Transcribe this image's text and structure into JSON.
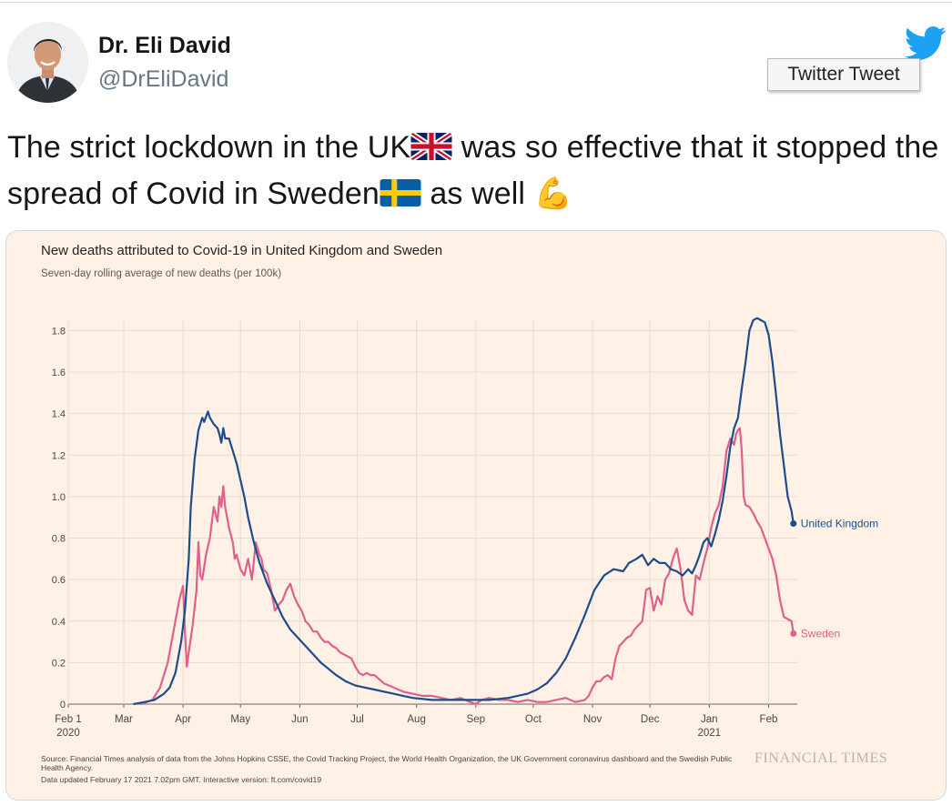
{
  "tweet": {
    "author_name": "Dr. Eli David",
    "author_handle": "@DrEliDavid",
    "tooltip": "Twitter Tweet",
    "text_part1": "The strict lockdown in the UK",
    "text_part2": " was so effective that it stopped the spread of Covid in Sweden",
    "text_part3": " as well ",
    "emoji_flag_uk": "uk-flag-icon",
    "emoji_flag_se": "sweden-flag-icon",
    "emoji_muscle": "💪"
  },
  "colors": {
    "uk": "#1b4d8c",
    "sweden": "#e05f8b",
    "background": "#fff1e5",
    "grid": "#e8dcd2",
    "twitter_blue": "#1da1f2"
  },
  "chart_data": {
    "type": "line",
    "title": "New deaths attributed to Covid-19 in United Kingdom and Sweden",
    "subtitle": "Seven-day rolling average of new deaths (per 100k)",
    "xlabel": "",
    "ylabel": "",
    "ylim": [
      0,
      1.85
    ],
    "yticks": [
      0,
      0.2,
      0.4,
      0.6,
      0.8,
      1.0,
      1.2,
      1.4,
      1.6,
      1.8
    ],
    "ytick_labels": [
      "0",
      "0.2",
      "0.4",
      "0.6",
      "0.8",
      "1.0",
      "1.2",
      "1.4",
      "1.6",
      "1.8"
    ],
    "xlim": [
      0,
      381
    ],
    "xticks": [
      {
        "day": 0,
        "label": "Feb 1",
        "sublabel": "2020"
      },
      {
        "day": 29,
        "label": "Mar",
        "sublabel": ""
      },
      {
        "day": 60,
        "label": "Apr",
        "sublabel": ""
      },
      {
        "day": 90,
        "label": "May",
        "sublabel": ""
      },
      {
        "day": 121,
        "label": "Jun",
        "sublabel": ""
      },
      {
        "day": 151,
        "label": "Jul",
        "sublabel": ""
      },
      {
        "day": 182,
        "label": "Aug",
        "sublabel": ""
      },
      {
        "day": 213,
        "label": "Sep",
        "sublabel": ""
      },
      {
        "day": 243,
        "label": "Oct",
        "sublabel": ""
      },
      {
        "day": 274,
        "label": "Nov",
        "sublabel": ""
      },
      {
        "day": 304,
        "label": "Dec",
        "sublabel": ""
      },
      {
        "day": 335,
        "label": "Jan",
        "sublabel": "2021"
      },
      {
        "day": 366,
        "label": "Feb",
        "sublabel": ""
      }
    ],
    "series": [
      {
        "name": "United Kingdom",
        "color": "#1b4d8c",
        "x": [
          34,
          40,
          45,
          50,
          53,
          56,
          59,
          61,
          63,
          64,
          66,
          68,
          70,
          71,
          73,
          74,
          76,
          78,
          79,
          80,
          81,
          82,
          84,
          86,
          88,
          90,
          92,
          94,
          97,
          100,
          104,
          108,
          112,
          116,
          120,
          124,
          128,
          132,
          136,
          140,
          145,
          150,
          155,
          160,
          165,
          170,
          175,
          180,
          190,
          200,
          210,
          220,
          230,
          240,
          245,
          250,
          255,
          260,
          265,
          270,
          275,
          280,
          285,
          290,
          293,
          297,
          300,
          303,
          306,
          309,
          312,
          315,
          318,
          321,
          324,
          326,
          328,
          330,
          332,
          334,
          336,
          338,
          340,
          342,
          344,
          346,
          348,
          350,
          352,
          354,
          356,
          358,
          360,
          362,
          364,
          366,
          368,
          370,
          372,
          374,
          376,
          378,
          379
        ],
        "y": [
          0.0,
          0.01,
          0.02,
          0.05,
          0.08,
          0.15,
          0.3,
          0.45,
          0.7,
          0.95,
          1.18,
          1.32,
          1.38,
          1.36,
          1.41,
          1.38,
          1.35,
          1.33,
          1.3,
          1.26,
          1.33,
          1.28,
          1.28,
          1.22,
          1.16,
          1.08,
          1.0,
          0.9,
          0.78,
          0.68,
          0.58,
          0.5,
          0.42,
          0.36,
          0.32,
          0.28,
          0.24,
          0.2,
          0.17,
          0.14,
          0.11,
          0.09,
          0.08,
          0.07,
          0.06,
          0.05,
          0.04,
          0.03,
          0.02,
          0.02,
          0.02,
          0.02,
          0.03,
          0.05,
          0.07,
          0.1,
          0.15,
          0.22,
          0.32,
          0.43,
          0.55,
          0.62,
          0.65,
          0.64,
          0.68,
          0.7,
          0.72,
          0.67,
          0.7,
          0.68,
          0.68,
          0.65,
          0.64,
          0.62,
          0.65,
          0.63,
          0.67,
          0.72,
          0.78,
          0.8,
          0.76,
          0.82,
          0.89,
          0.98,
          1.1,
          1.24,
          1.33,
          1.38,
          1.52,
          1.65,
          1.8,
          1.85,
          1.86,
          1.85,
          1.84,
          1.78,
          1.65,
          1.48,
          1.3,
          1.15,
          1.0,
          0.93,
          0.87
        ]
      },
      {
        "name": "Sweden",
        "color": "#e05f8b",
        "x": [
          38,
          44,
          48,
          52,
          55,
          58,
          60,
          61,
          62,
          63,
          65,
          67,
          68,
          69,
          70,
          72,
          74,
          76,
          78,
          79,
          80,
          81,
          82,
          84,
          86,
          87,
          88,
          90,
          92,
          94,
          96,
          98,
          100,
          101,
          102,
          104,
          106,
          108,
          110,
          112,
          114,
          116,
          118,
          120,
          122,
          124,
          126,
          128,
          130,
          132,
          134,
          136,
          138,
          140,
          142,
          144,
          146,
          148,
          150,
          152,
          154,
          156,
          158,
          160,
          165,
          170,
          175,
          180,
          185,
          190,
          195,
          200,
          205,
          210,
          213,
          216,
          220,
          225,
          230,
          235,
          240,
          245,
          250,
          255,
          260,
          265,
          270,
          272,
          274,
          276,
          278,
          280,
          282,
          284,
          286,
          288,
          290,
          292,
          294,
          296,
          298,
          300,
          302,
          304,
          306,
          308,
          310,
          312,
          314,
          316,
          318,
          320,
          322,
          324,
          326,
          328,
          330,
          332,
          334,
          336,
          338,
          340,
          342,
          344,
          346,
          348,
          349,
          350,
          351,
          352,
          353,
          354,
          356,
          358,
          360,
          362,
          364,
          366,
          368,
          370,
          372,
          374,
          376,
          378,
          379
        ],
        "y": [
          0.0,
          0.02,
          0.08,
          0.2,
          0.35,
          0.5,
          0.57,
          0.35,
          0.18,
          0.25,
          0.38,
          0.55,
          0.78,
          0.62,
          0.6,
          0.72,
          0.8,
          0.95,
          0.88,
          1.0,
          0.95,
          1.05,
          0.95,
          0.85,
          0.78,
          0.7,
          0.72,
          0.65,
          0.62,
          0.7,
          0.6,
          0.78,
          0.72,
          0.7,
          0.65,
          0.63,
          0.55,
          0.45,
          0.48,
          0.5,
          0.55,
          0.58,
          0.52,
          0.48,
          0.45,
          0.4,
          0.38,
          0.35,
          0.35,
          0.32,
          0.3,
          0.3,
          0.28,
          0.27,
          0.25,
          0.24,
          0.23,
          0.22,
          0.18,
          0.15,
          0.14,
          0.15,
          0.14,
          0.14,
          0.1,
          0.08,
          0.06,
          0.05,
          0.04,
          0.04,
          0.03,
          0.02,
          0.03,
          0.01,
          0.0,
          0.02,
          0.03,
          0.02,
          0.02,
          0.01,
          0.02,
          0.01,
          0.01,
          0.02,
          0.03,
          0.01,
          0.02,
          0.04,
          0.08,
          0.11,
          0.11,
          0.13,
          0.14,
          0.12,
          0.22,
          0.28,
          0.3,
          0.32,
          0.33,
          0.36,
          0.38,
          0.4,
          0.55,
          0.56,
          0.45,
          0.52,
          0.48,
          0.6,
          0.63,
          0.7,
          0.75,
          0.65,
          0.5,
          0.45,
          0.43,
          0.62,
          0.6,
          0.68,
          0.75,
          0.85,
          0.92,
          0.96,
          1.05,
          1.22,
          1.28,
          1.25,
          1.3,
          1.32,
          1.33,
          1.22,
          1.0,
          0.96,
          0.95,
          0.92,
          0.88,
          0.85,
          0.8,
          0.75,
          0.7,
          0.62,
          0.5,
          0.42,
          0.41,
          0.4,
          0.34
        ]
      }
    ],
    "end_labels": [
      "United Kingdom",
      "Sweden"
    ],
    "source": "Source: Financial Times analysis of data from the Johns Hopkins CSSE, the Covid Tracking Project, the World Health Organization, the UK Government coronavirus dashboard and the Swedish Public Health Agency.",
    "updated": "Data updated February 17 2021 7.02pm GMT. Interactive version: ft.com/covid19",
    "publisher": "FINANCIAL TIMES"
  }
}
